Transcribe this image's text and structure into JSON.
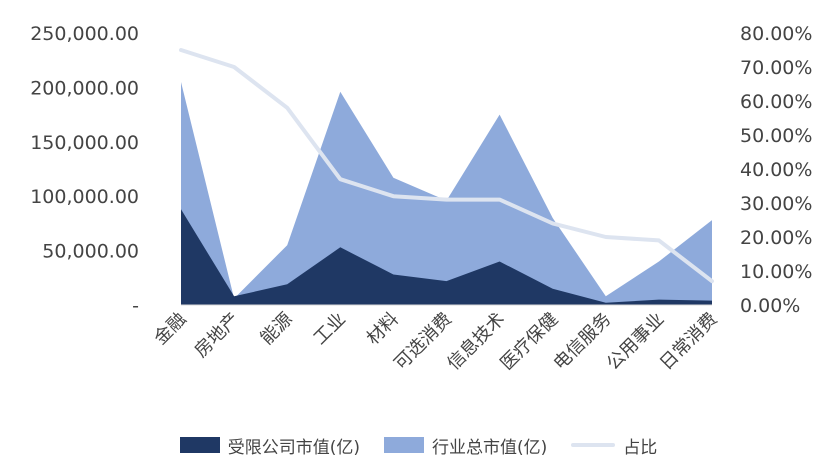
{
  "chart_data": {
    "type": "area",
    "categories": [
      "金融",
      "房地产",
      "能源",
      "工业",
      "材料",
      "可选消费",
      "信息技术",
      "医疗保健",
      "电信服务",
      "公用事业",
      "日常消费"
    ],
    "series": [
      {
        "name": "受限公司市值(亿)",
        "axis": "left",
        "type": "area",
        "color": "#1f3864",
        "values": [
          88000,
          8000,
          19000,
          53000,
          28000,
          22000,
          40000,
          15000,
          2000,
          5000,
          4000
        ]
      },
      {
        "name": "行业总市值(亿)",
        "axis": "left",
        "type": "area",
        "color": "#8eaadb",
        "values": [
          205000,
          6000,
          55000,
          196000,
          117000,
          96000,
          175000,
          80000,
          8000,
          40000,
          78000
        ]
      },
      {
        "name": "占比",
        "axis": "right",
        "type": "line",
        "color": "#dde4f0",
        "values": [
          0.75,
          0.7,
          0.58,
          0.37,
          0.32,
          0.31,
          0.31,
          0.24,
          0.2,
          0.19,
          0.07
        ]
      }
    ],
    "y_left": {
      "ticks": [
        "250,000.00",
        "200,000.00",
        "150,000.00",
        "100,000.00",
        "50,000.00",
        "-"
      ],
      "ylim": [
        0,
        250000
      ]
    },
    "y_right": {
      "ticks": [
        "80.00%",
        "70.00%",
        "60.00%",
        "50.00%",
        "40.00%",
        "30.00%",
        "20.00%",
        "10.00%",
        "0.00%"
      ],
      "ylim": [
        0,
        0.8
      ]
    },
    "legend_position": "bottom"
  },
  "legend": {
    "total": "行业总市值(亿)",
    "restricted": "受限公司市值(亿)",
    "ratio": "占比"
  }
}
